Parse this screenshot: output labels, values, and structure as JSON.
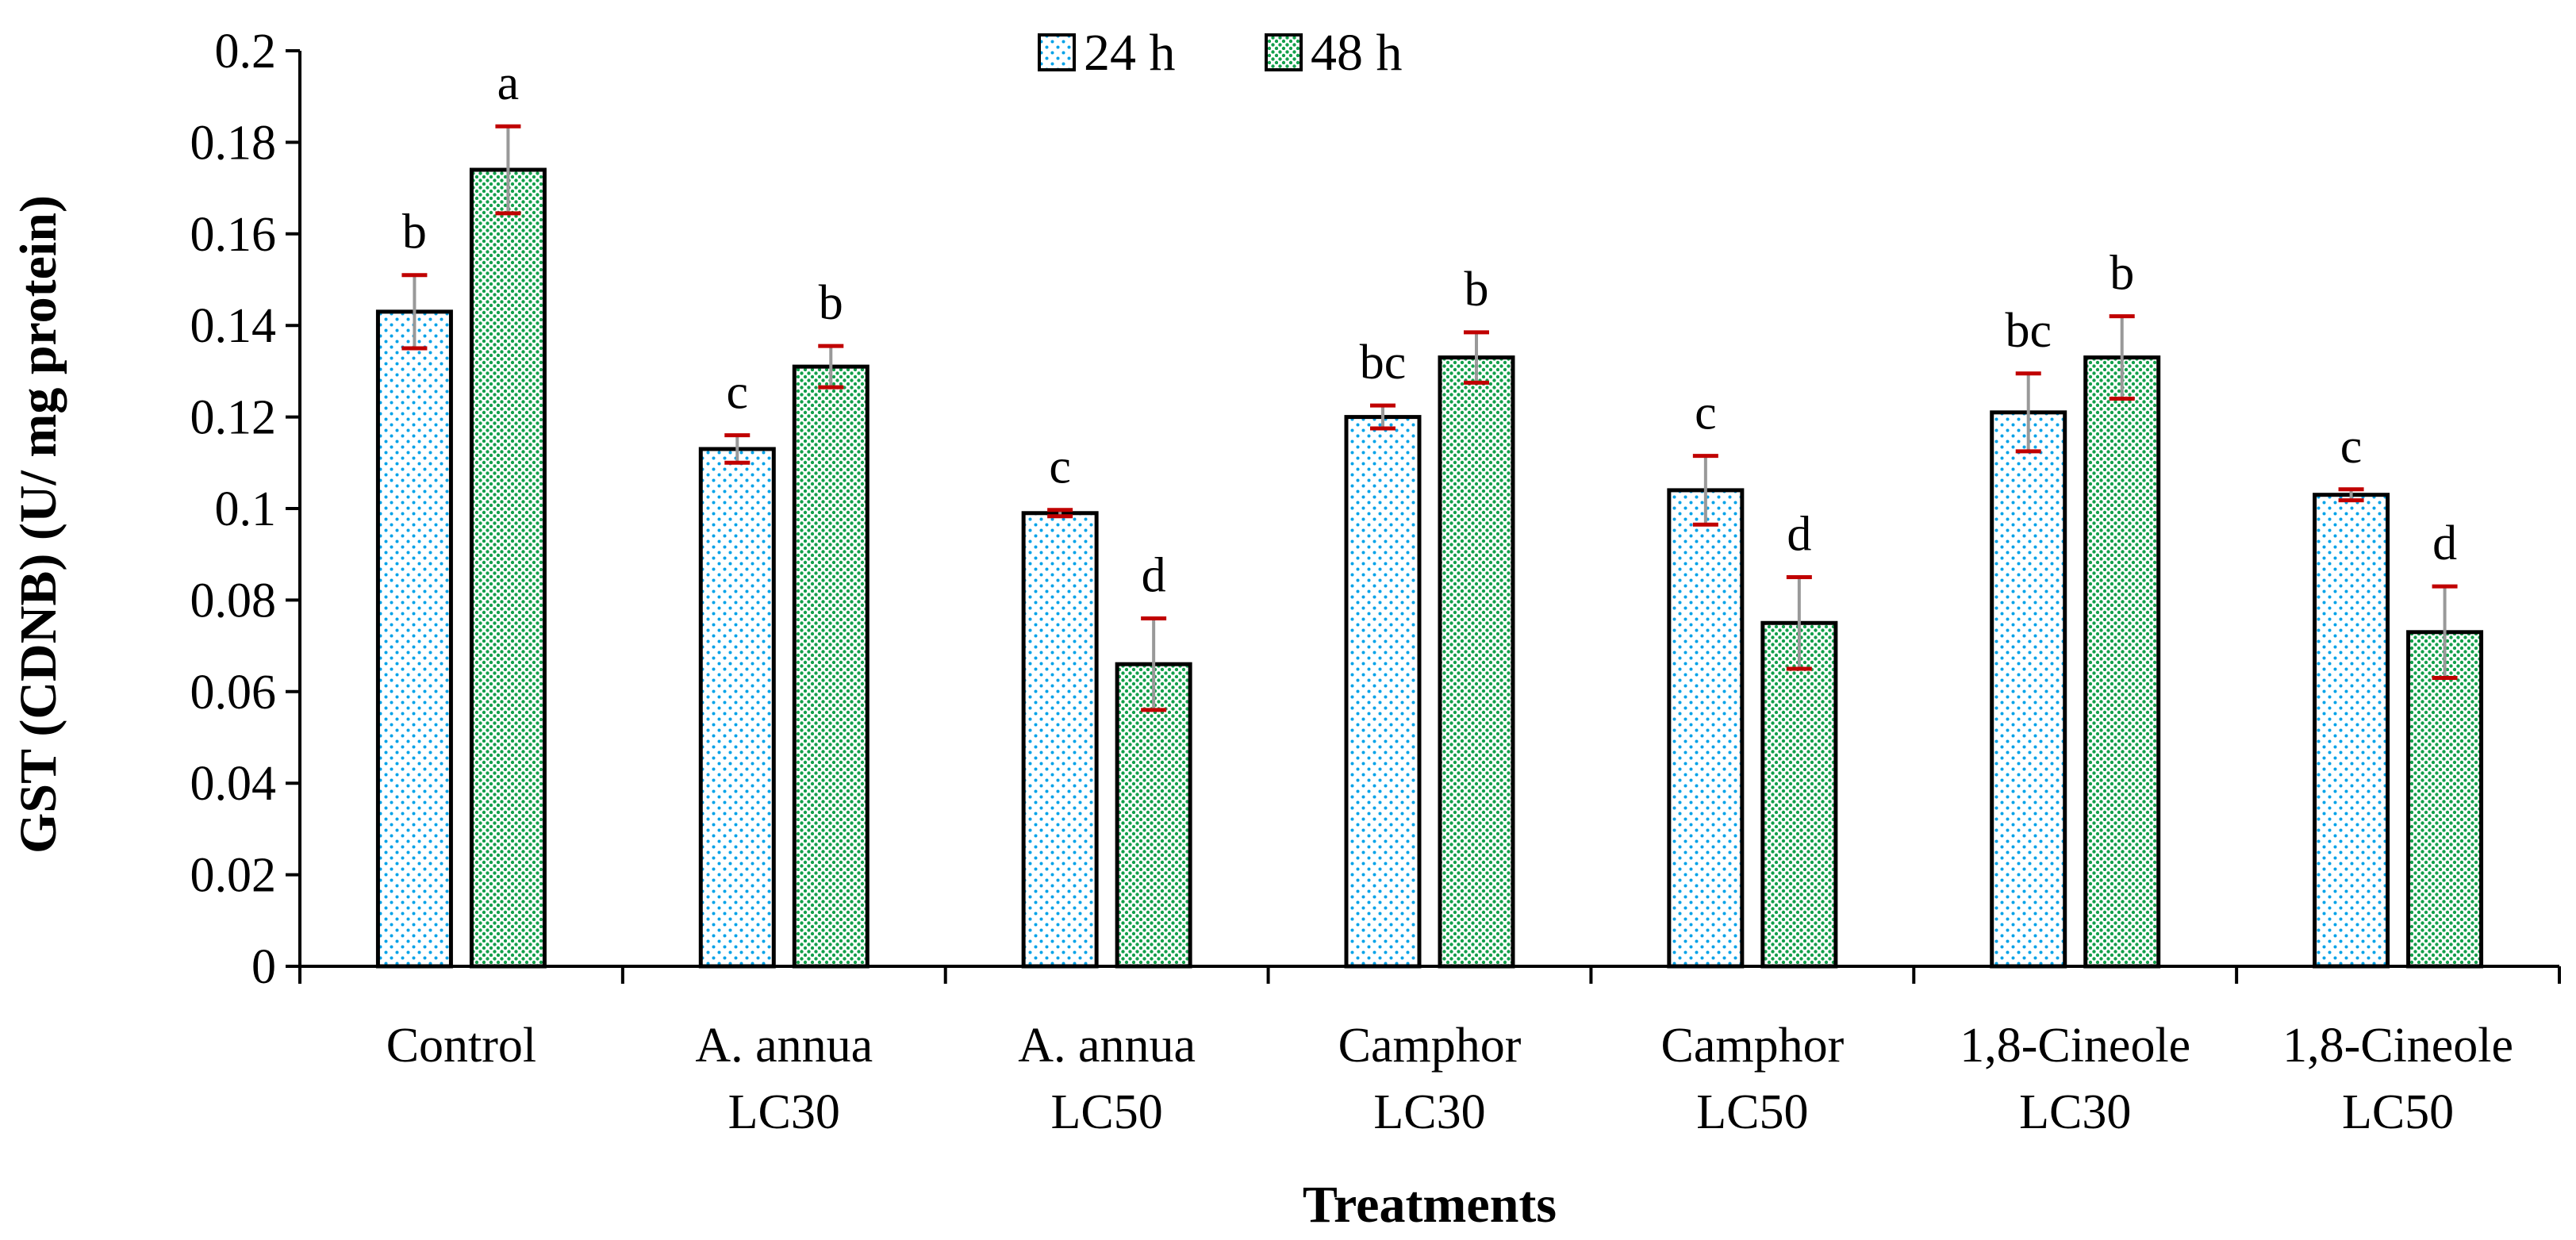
{
  "chart_data": {
    "type": "bar",
    "title": "",
    "xlabel": "Treatments",
    "ylabel": "GST (CDNB) (U/ mg protein)",
    "ylim": [
      0,
      0.2
    ],
    "yticks": [
      "0",
      "0.02",
      "0.04",
      "0.06",
      "0.08",
      "0.1",
      "0.12",
      "0.14",
      "0.16",
      "0.18",
      "0.2"
    ],
    "grid": false,
    "legend_position": "top-center",
    "categories": [
      [
        "Control"
      ],
      [
        "A. annua",
        "LC30"
      ],
      [
        "A. annua",
        "LC50"
      ],
      [
        "Camphor",
        "LC30"
      ],
      [
        "Camphor",
        "LC50"
      ],
      [
        "1,8-Cineole",
        "LC30"
      ],
      [
        "1,8-Cineole",
        "LC50"
      ]
    ],
    "series": [
      {
        "name": "24 h",
        "pattern_color": "#00a2e8",
        "values": [
          0.143,
          0.113,
          0.099,
          0.12,
          0.104,
          0.121,
          0.103
        ],
        "errors": [
          0.008,
          0.003,
          0.0007,
          0.0025,
          0.0075,
          0.0085,
          0.0012
        ],
        "labels": [
          "b",
          "c",
          "c",
          "bc",
          "c",
          "bc",
          "c"
        ]
      },
      {
        "name": "48 h",
        "pattern_color": "#13a04b",
        "values": [
          0.174,
          0.131,
          0.066,
          0.133,
          0.075,
          0.133,
          0.073
        ],
        "errors": [
          0.0095,
          0.0045,
          0.01,
          0.0055,
          0.01,
          0.009,
          0.01
        ],
        "labels": [
          "a",
          "b",
          "d",
          "b",
          "d",
          "b",
          "d"
        ]
      }
    ],
    "colors": {
      "bar_stroke": "#000000",
      "error_bar": "#c00000",
      "error_stem": "#999999",
      "background": "#ffffff"
    }
  }
}
